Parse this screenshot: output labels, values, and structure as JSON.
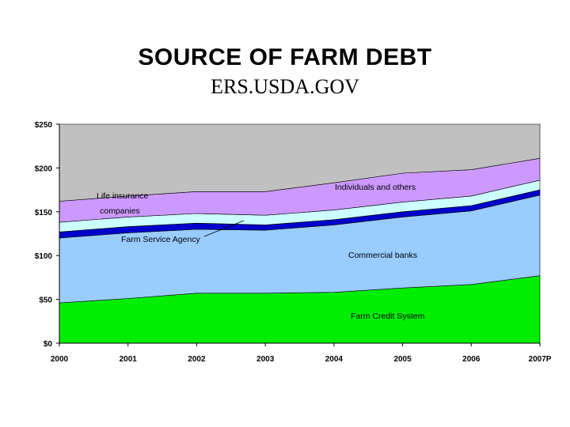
{
  "header": {
    "title": "SOURCE OF FARM DEBT",
    "subtitle": "ERS.USDA.GOV"
  },
  "chart_data": {
    "type": "area",
    "stacked": true,
    "categories": [
      "2000",
      "2001",
      "2002",
      "2003",
      "2004",
      "2005",
      "2006",
      "2007P"
    ],
    "ylim": [
      0,
      250
    ],
    "yticks": [
      "$0",
      "$50",
      "$100",
      "$150",
      "$200",
      "$250"
    ],
    "grid": false,
    "series": [
      {
        "name": "Farm Credit System",
        "color": "#00ee00",
        "values": [
          46,
          51,
          57,
          57,
          58,
          63,
          67,
          77
        ]
      },
      {
        "name": "Commercial banks",
        "color": "#99ccff",
        "values": [
          74,
          75,
          73,
          72,
          77,
          81,
          84,
          92
        ]
      },
      {
        "name": "Farm Service Agency",
        "color": "#0000cc",
        "values": [
          7,
          7,
          7,
          6,
          6,
          6,
          6,
          6
        ]
      },
      {
        "name": "Life insurance companies",
        "color": "#ccffff",
        "values": [
          11,
          11,
          11,
          11,
          11,
          11,
          11,
          11
        ]
      },
      {
        "name": "Individuals and others",
        "color": "#cc99ff",
        "values": [
          24,
          24,
          25,
          27,
          31,
          33,
          30,
          25
        ]
      },
      {
        "color": "#c0c0c0",
        "values": [
          88,
          82,
          77,
          77,
          67,
          56,
          52,
          39
        ]
      }
    ],
    "annotations": [
      {
        "text": "Life insurance",
        "series": "Life insurance companies"
      },
      {
        "text": "companies",
        "series": "Life insurance companies"
      },
      {
        "text": "Individuals and others",
        "series": "Individuals and others"
      },
      {
        "text": "Farm Service Agency",
        "series": "Farm Service Agency"
      },
      {
        "text": "Commercial banks",
        "series": "Commercial banks"
      },
      {
        "text": "Farm Credit System",
        "series": "Farm Credit System"
      }
    ]
  }
}
